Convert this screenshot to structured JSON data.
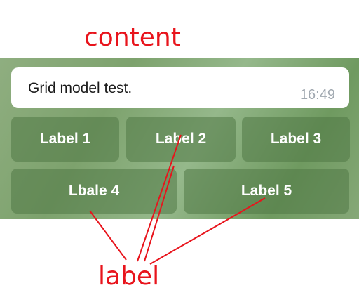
{
  "annotations": {
    "content_label": "content",
    "label_label": "label",
    "color": "#e8141c"
  },
  "message": {
    "text": "Grid model test.",
    "time": "16:49"
  },
  "keyboard": {
    "rows": [
      [
        {
          "label": "Label 1"
        },
        {
          "label": "Label 2"
        },
        {
          "label": "Label 3"
        }
      ],
      [
        {
          "label": "Lbale 4"
        },
        {
          "label": "Label 5"
        }
      ]
    ]
  }
}
